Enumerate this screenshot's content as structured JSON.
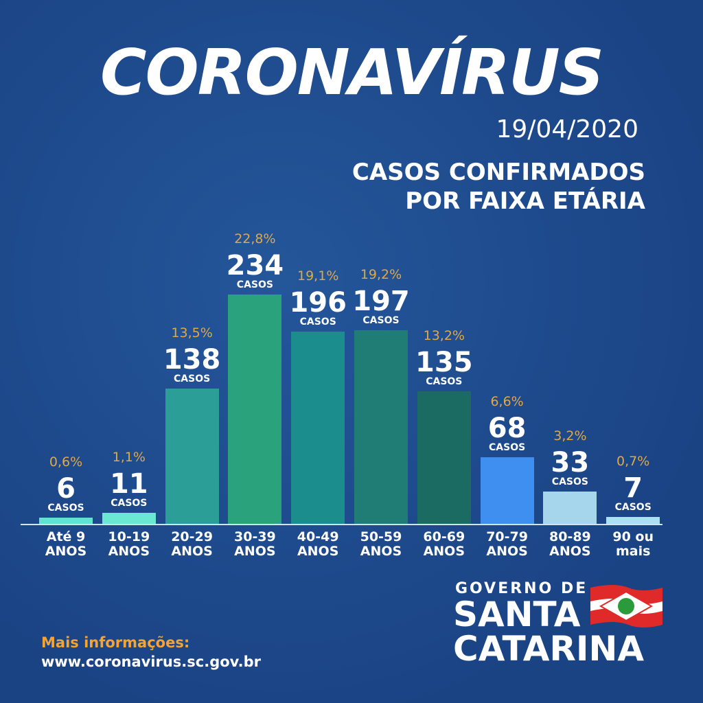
{
  "title": "CORONAVÍRUS",
  "date": "19/04/2020",
  "subtitle_lines": [
    "CASOS CONFIRMADOS",
    "POR FAIXA ETÁRIA"
  ],
  "chart_data": {
    "type": "bar",
    "categories": [
      "Até 9 ANOS",
      "10-19 ANOS",
      "20-29 ANOS",
      "30-39 ANOS",
      "40-49 ANOS",
      "50-59 ANOS",
      "60-69 ANOS",
      "70-79 ANOS",
      "80-89 ANOS",
      "90 ou mais"
    ],
    "values": [
      6,
      11,
      138,
      234,
      196,
      197,
      135,
      68,
      33,
      7
    ],
    "unit_label": "CASOS",
    "percentages": [
      0.6,
      1.1,
      13.5,
      22.8,
      19.1,
      19.2,
      13.2,
      6.6,
      3.2,
      0.7
    ],
    "percentage_labels": [
      "0,6%",
      "1,1%",
      "13,5%",
      "22,8%",
      "19,1%",
      "19,2%",
      "13,2%",
      "6,6%",
      "3,2%",
      "0,7%"
    ],
    "colors": [
      "#62e3cf",
      "#6ae8d2",
      "#2b9e97",
      "#2aa37d",
      "#1b8d8c",
      "#1f7d76",
      "#1c6b63",
      "#3f8ff0",
      "#a6d6ec",
      "#a9e1f2"
    ],
    "ylim": [
      0,
      240
    ]
  },
  "footer": {
    "more_info": "Mais informações:",
    "url": "www.coronavirus.sc.gov.br"
  },
  "logo": {
    "line1": "GOVERNO DE",
    "line2": "SANTA",
    "line3": "CATARINA"
  }
}
